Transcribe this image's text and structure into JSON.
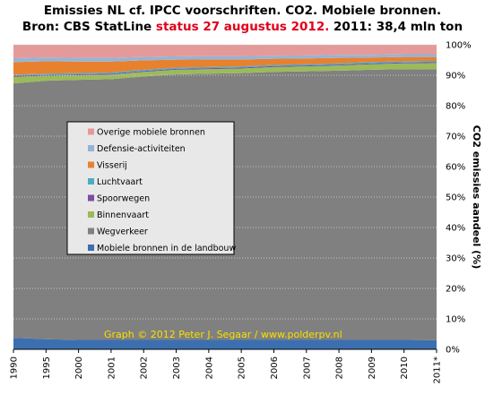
{
  "header": {
    "line1": "Emissies NL cf. IPCC voorschriften. CO2. Mobiele bronnen.",
    "line2_prefix": "Bron: CBS StatLine ",
    "line2_status": "status 27 augustus 2012.",
    "line2_suffix": " 2011: 38,4 mln ton"
  },
  "colors": {
    "status_text": "#e0001a",
    "credit_text": "#f5e000"
  },
  "chart_data": {
    "type": "area",
    "stacked": true,
    "percent": true,
    "title": "Emissies NL cf. IPCC voorschriften. CO2. Mobiele bronnen.",
    "subtitle": "Bron: CBS StatLine status 27 augustus 2012. 2011: 38,4 mln ton",
    "xlabel": "",
    "ylabel": "CO2 emissies aandeel (%)",
    "ylim": [
      0,
      100
    ],
    "y_ticks": [
      "0%",
      "10%",
      "20%",
      "30%",
      "40%",
      "50%",
      "60%",
      "70%",
      "80%",
      "90%",
      "100%"
    ],
    "y_axis_side": "right",
    "x": [
      "1990",
      "1995",
      "2000",
      "2001",
      "2002",
      "2003",
      "2004",
      "2005",
      "2006",
      "2007",
      "2008",
      "2009",
      "2010",
      "2011*"
    ],
    "legend_position": "center-left",
    "annotation": "Graph © 2012 Peter J. Segaar / www.polderpv.nl",
    "series": [
      {
        "name": "Mobiele bronnen in de landbouw",
        "color": "#3c6fb0",
        "values": [
          3.8,
          3.3,
          3.1,
          3.1,
          3.1,
          3.1,
          3.1,
          3.1,
          3.1,
          3.1,
          3.1,
          3.1,
          3.1,
          3.0
        ]
      },
      {
        "name": "Wegverkeer",
        "color": "#808080",
        "values": [
          83.5,
          84.9,
          85.4,
          85.6,
          86.5,
          87.2,
          87.4,
          87.6,
          88.0,
          88.2,
          88.4,
          88.7,
          88.9,
          89.0
        ]
      },
      {
        "name": "Binnenvaart",
        "color": "#9bbb59",
        "values": [
          2.2,
          1.6,
          1.5,
          1.5,
          1.5,
          1.5,
          1.5,
          1.5,
          1.6,
          1.6,
          1.7,
          1.8,
          1.9,
          2.0
        ]
      },
      {
        "name": "Spoorwegen",
        "color": "#7a4f9e",
        "values": [
          0.3,
          0.3,
          0.3,
          0.3,
          0.3,
          0.3,
          0.3,
          0.3,
          0.3,
          0.3,
          0.3,
          0.3,
          0.3,
          0.3
        ]
      },
      {
        "name": "Luchtvaart",
        "color": "#4bacc6",
        "values": [
          0.4,
          0.4,
          0.4,
          0.4,
          0.4,
          0.4,
          0.4,
          0.4,
          0.4,
          0.4,
          0.4,
          0.4,
          0.4,
          0.4
        ]
      },
      {
        "name": "Visserij",
        "color": "#e8812e",
        "values": [
          4.1,
          4.1,
          3.8,
          3.6,
          3.1,
          2.6,
          2.5,
          2.3,
          2.0,
          1.9,
          1.8,
          1.5,
          1.4,
          1.3
        ]
      },
      {
        "name": "Defensie-activiteiten",
        "color": "#95b3d7",
        "values": [
          1.3,
          1.2,
          1.2,
          1.2,
          1.1,
          1.1,
          1.1,
          1.1,
          1.0,
          1.0,
          1.0,
          0.9,
          0.9,
          0.9
        ]
      },
      {
        "name": "Overige mobiele bronnen",
        "color": "#e59a9a",
        "values": [
          4.4,
          4.2,
          4.3,
          4.3,
          4.0,
          3.8,
          3.7,
          3.7,
          3.6,
          3.5,
          3.3,
          3.3,
          3.1,
          3.1
        ]
      }
    ]
  }
}
